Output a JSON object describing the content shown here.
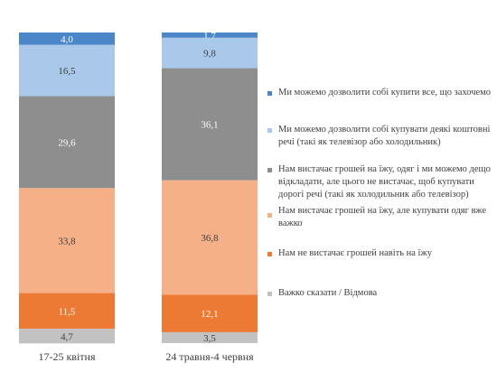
{
  "chart_data": {
    "type": "bar",
    "stacked": true,
    "ylim": [
      0,
      100
    ],
    "grid": false,
    "legend_position": "right",
    "categories": [
      "17-25 квітня",
      "24 травня-4 червня"
    ],
    "series": [
      {
        "name": "Ми можемо дозволити  собі купити все, що захочемо",
        "color": "#4a86c8",
        "values": [
          4.0,
          1.7
        ],
        "labels": [
          "4,0",
          "1,7"
        ]
      },
      {
        "name": "Ми можемо дозволити  собі купувати деякі коштовні речі (такі як телевізор  або холодильник)",
        "color": "#a9c8ea",
        "values": [
          16.5,
          9.8
        ],
        "labels": [
          "16,5",
          "9,8"
        ]
      },
      {
        "name": "Нам вистачає грошей на їжу, одяг і ми можемо дещо відкладати,  але цього не вистачає, щоб купувати дорогі речі (такі  як холодильник  або телевізор)",
        "color": "#8e8e8e",
        "values": [
          29.6,
          36.1
        ],
        "labels": [
          "29,6",
          "36,1"
        ]
      },
      {
        "name": "Нам вистачає грошей на їжу, але купувати одяг вже важко",
        "color": "#f5b088",
        "values": [
          33.8,
          36.8
        ],
        "labels": [
          "33,8",
          "36,8"
        ]
      },
      {
        "name": "Нам не вистачає грошей навіть  на їжу",
        "color": "#ec7a35",
        "values": [
          11.5,
          12.1
        ],
        "labels": [
          "11,5",
          "12,1"
        ]
      },
      {
        "name": "Важко  сказати / Відмова",
        "color": "#c2c2c2",
        "values": [
          4.7,
          3.5
        ],
        "labels": [
          "4,7",
          "3,5"
        ]
      }
    ]
  }
}
